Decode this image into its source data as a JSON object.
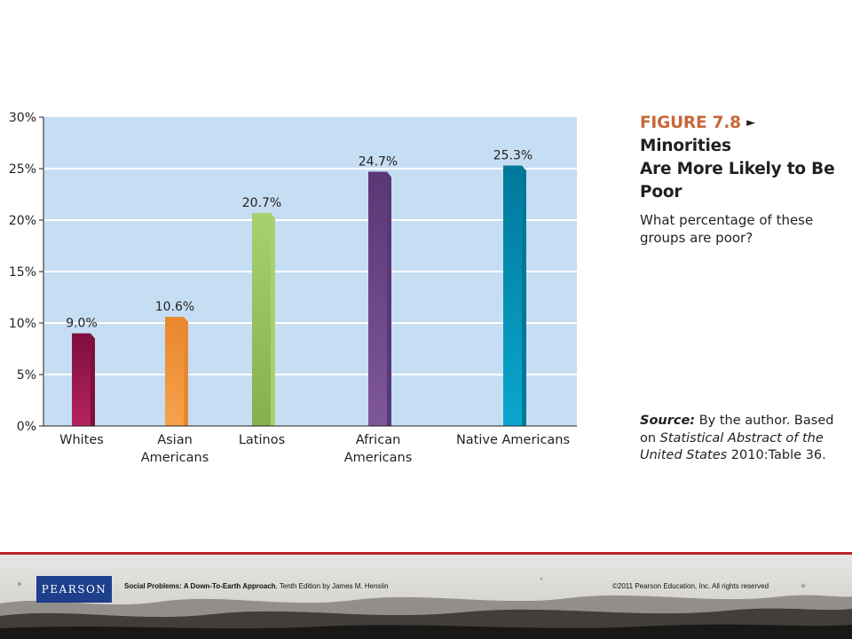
{
  "chart_data": {
    "type": "bar",
    "categories": [
      [
        "Whites"
      ],
      [
        "Asian",
        "Americans"
      ],
      [
        "Latinos"
      ],
      [
        "African",
        "Americans"
      ],
      [
        "Native Americans"
      ]
    ],
    "values": [
      9.0,
      10.6,
      20.7,
      24.7,
      25.3
    ],
    "value_labels": [
      "9.0%",
      "10.6%",
      "20.7%",
      "24.7%",
      "25.3%"
    ],
    "yticks": [
      "0%",
      "5%",
      "10%",
      "15%",
      "20%",
      "25%",
      "30%"
    ],
    "ylim": [
      0,
      30
    ],
    "grid": true,
    "colors": {
      "plot_background": "#c6def3",
      "bars": [
        "#b5225e",
        "#f7a24d",
        "#84b050",
        "#7f569a",
        "#0aa7cf"
      ],
      "bar_sides": [
        "#7e0f3d",
        "#e8872c",
        "#a7d06e",
        "#5a3775",
        "#00789a"
      ]
    }
  },
  "figure": {
    "label": "FIGURE 7.8",
    "arrow": "►",
    "title_line1": "Minorities",
    "title_line2": "Are More Likely to Be",
    "title_line3": "Poor",
    "question_line1": "What percentage of these",
    "question_line2": "groups are poor?"
  },
  "source": {
    "label": "Source:",
    "line1_rest": "By the author. Based",
    "line2_pre": "on",
    "line2_italic": "Statistical Abstract of the",
    "line3_italic": "United States",
    "line3_rest": "2010:Table 36."
  },
  "footer": {
    "logo": "PEARSON",
    "book_title": "Social Problems: A Down-To-Earth Approach",
    "book_rest": ", Tenth Edition by James M. Henslin",
    "copyright": "©2011 Pearson Education, Inc.  All rights reserved"
  }
}
